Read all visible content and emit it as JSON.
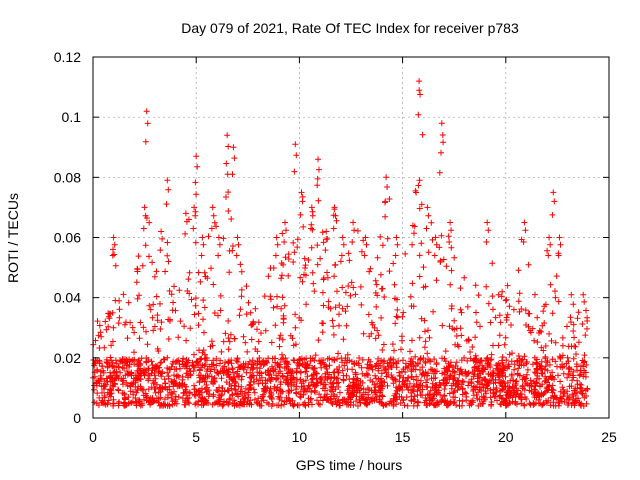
{
  "chart_data": {
    "type": "scatter",
    "title": "Day 079 of 2021, Rate Of TEC Index for receiver p783",
    "xlabel": "GPS time / hours",
    "ylabel": "ROTI / TECUs",
    "xlim": [
      0,
      25
    ],
    "ylim": [
      0,
      0.12
    ],
    "xticks": [
      0,
      5,
      10,
      15,
      20,
      25
    ],
    "xtick_labels": [
      "0",
      "5",
      "10",
      "15",
      "20",
      "25"
    ],
    "yticks": [
      0,
      0.02,
      0.04,
      0.06,
      0.08,
      0.1,
      0.12
    ],
    "ytick_labels": [
      "0",
      "0.02",
      "0.04",
      "0.06",
      "0.08",
      "0.1",
      "0.12"
    ],
    "grid": true,
    "marker": "+",
    "series": [
      {
        "name": "ROTI",
        "color": "#ff0000",
        "data_range_hours": [
          0,
          24
        ],
        "baseline_min": 0.004,
        "baseline_max": 0.02,
        "envelope": [
          [
            0.0,
            0.028
          ],
          [
            0.3,
            0.045
          ],
          [
            0.6,
            0.035
          ],
          [
            1.0,
            0.06
          ],
          [
            1.3,
            0.038
          ],
          [
            1.9,
            0.05
          ],
          [
            2.1,
            0.053
          ],
          [
            2.5,
            0.07
          ],
          [
            2.6,
            0.102
          ],
          [
            2.9,
            0.055
          ],
          [
            3.3,
            0.062
          ],
          [
            3.6,
            0.079
          ],
          [
            4.0,
            0.05
          ],
          [
            4.5,
            0.068
          ],
          [
            4.9,
            0.07
          ],
          [
            5.0,
            0.087
          ],
          [
            5.3,
            0.06
          ],
          [
            5.8,
            0.07
          ],
          [
            6.1,
            0.06
          ],
          [
            6.5,
            0.094
          ],
          [
            6.8,
            0.09
          ],
          [
            7.0,
            0.06
          ],
          [
            7.5,
            0.045
          ],
          [
            8.0,
            0.044
          ],
          [
            8.5,
            0.05
          ],
          [
            8.9,
            0.06
          ],
          [
            9.3,
            0.065
          ],
          [
            9.8,
            0.091
          ],
          [
            10.1,
            0.075
          ],
          [
            10.6,
            0.07
          ],
          [
            10.9,
            0.086
          ],
          [
            11.3,
            0.062
          ],
          [
            11.7,
            0.07
          ],
          [
            12.1,
            0.06
          ],
          [
            12.6,
            0.065
          ],
          [
            13.2,
            0.06
          ],
          [
            13.7,
            0.05
          ],
          [
            14.2,
            0.08
          ],
          [
            14.7,
            0.06
          ],
          [
            15.1,
            0.055
          ],
          [
            15.5,
            0.064
          ],
          [
            15.8,
            0.112
          ],
          [
            16.2,
            0.07
          ],
          [
            16.6,
            0.06
          ],
          [
            16.9,
            0.098
          ],
          [
            17.3,
            0.065
          ],
          [
            17.8,
            0.048
          ],
          [
            18.3,
            0.05
          ],
          [
            18.8,
            0.055
          ],
          [
            19.1,
            0.065
          ],
          [
            19.5,
            0.05
          ],
          [
            20.0,
            0.045
          ],
          [
            20.5,
            0.05
          ],
          [
            20.9,
            0.065
          ],
          [
            21.3,
            0.04
          ],
          [
            21.8,
            0.05
          ],
          [
            22.1,
            0.06
          ],
          [
            22.3,
            0.075
          ],
          [
            22.6,
            0.06
          ],
          [
            23.0,
            0.045
          ],
          [
            23.5,
            0.035
          ],
          [
            23.9,
            0.05
          ],
          [
            24.0,
            0.048
          ]
        ]
      }
    ]
  }
}
